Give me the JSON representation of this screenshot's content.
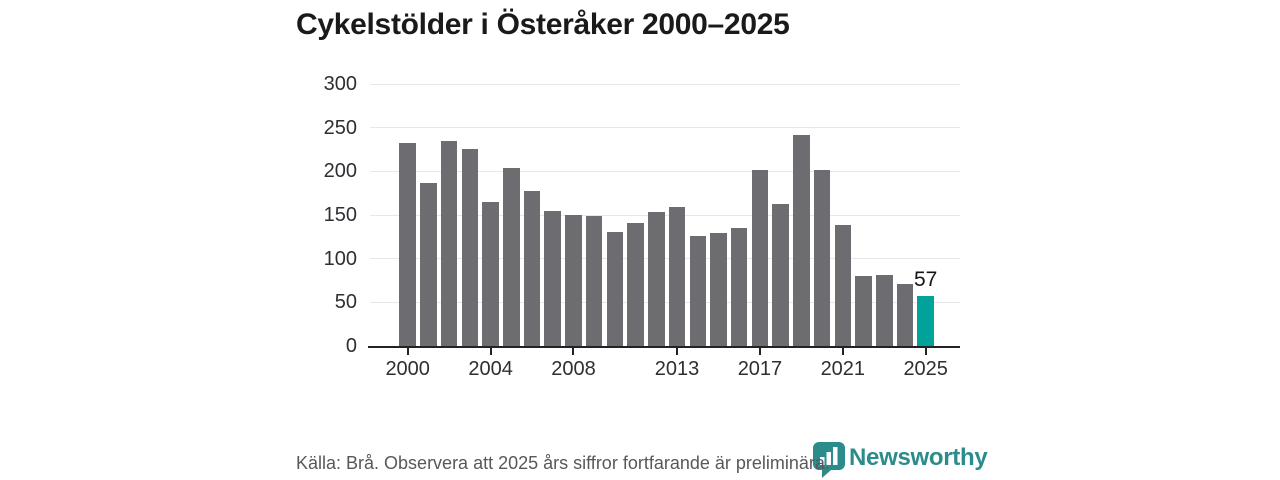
{
  "title": "Cykelstölder i Österåker 2000–2025",
  "chart_data": {
    "type": "bar",
    "title": "Cykelstölder i Österåker 2000–2025",
    "x": [
      2000,
      2001,
      2002,
      2003,
      2004,
      2005,
      2006,
      2007,
      2008,
      2009,
      2010,
      2011,
      2012,
      2013,
      2014,
      2015,
      2016,
      2017,
      2018,
      2019,
      2020,
      2021,
      2022,
      2023,
      2024,
      2025
    ],
    "values": [
      232,
      187,
      235,
      226,
      165,
      204,
      177,
      155,
      150,
      149,
      130,
      141,
      154,
      159,
      126,
      129,
      135,
      202,
      163,
      242,
      201,
      139,
      80,
      81,
      71,
      57
    ],
    "highlight": {
      "year": 2025,
      "value": 57,
      "label": "57"
    },
    "ylim": [
      0,
      300
    ],
    "y_ticks": [
      0,
      50,
      100,
      150,
      200,
      250,
      300
    ],
    "x_ticks": [
      2000,
      2004,
      2008,
      2013,
      2017,
      2021,
      2025
    ],
    "grid": "horizontal",
    "legend": "none",
    "bar_color": "#6c6c71",
    "highlight_color": "#00a29a"
  },
  "footer": {
    "source_note": "Källa: Brå. Observera att 2025 års siffror fortfarande är preliminära."
  },
  "branding": {
    "wordmark": "Newsworthy",
    "icon": "newsworthy-speech-bubble-bar-chart-icon",
    "color": "#2b8c8b"
  }
}
